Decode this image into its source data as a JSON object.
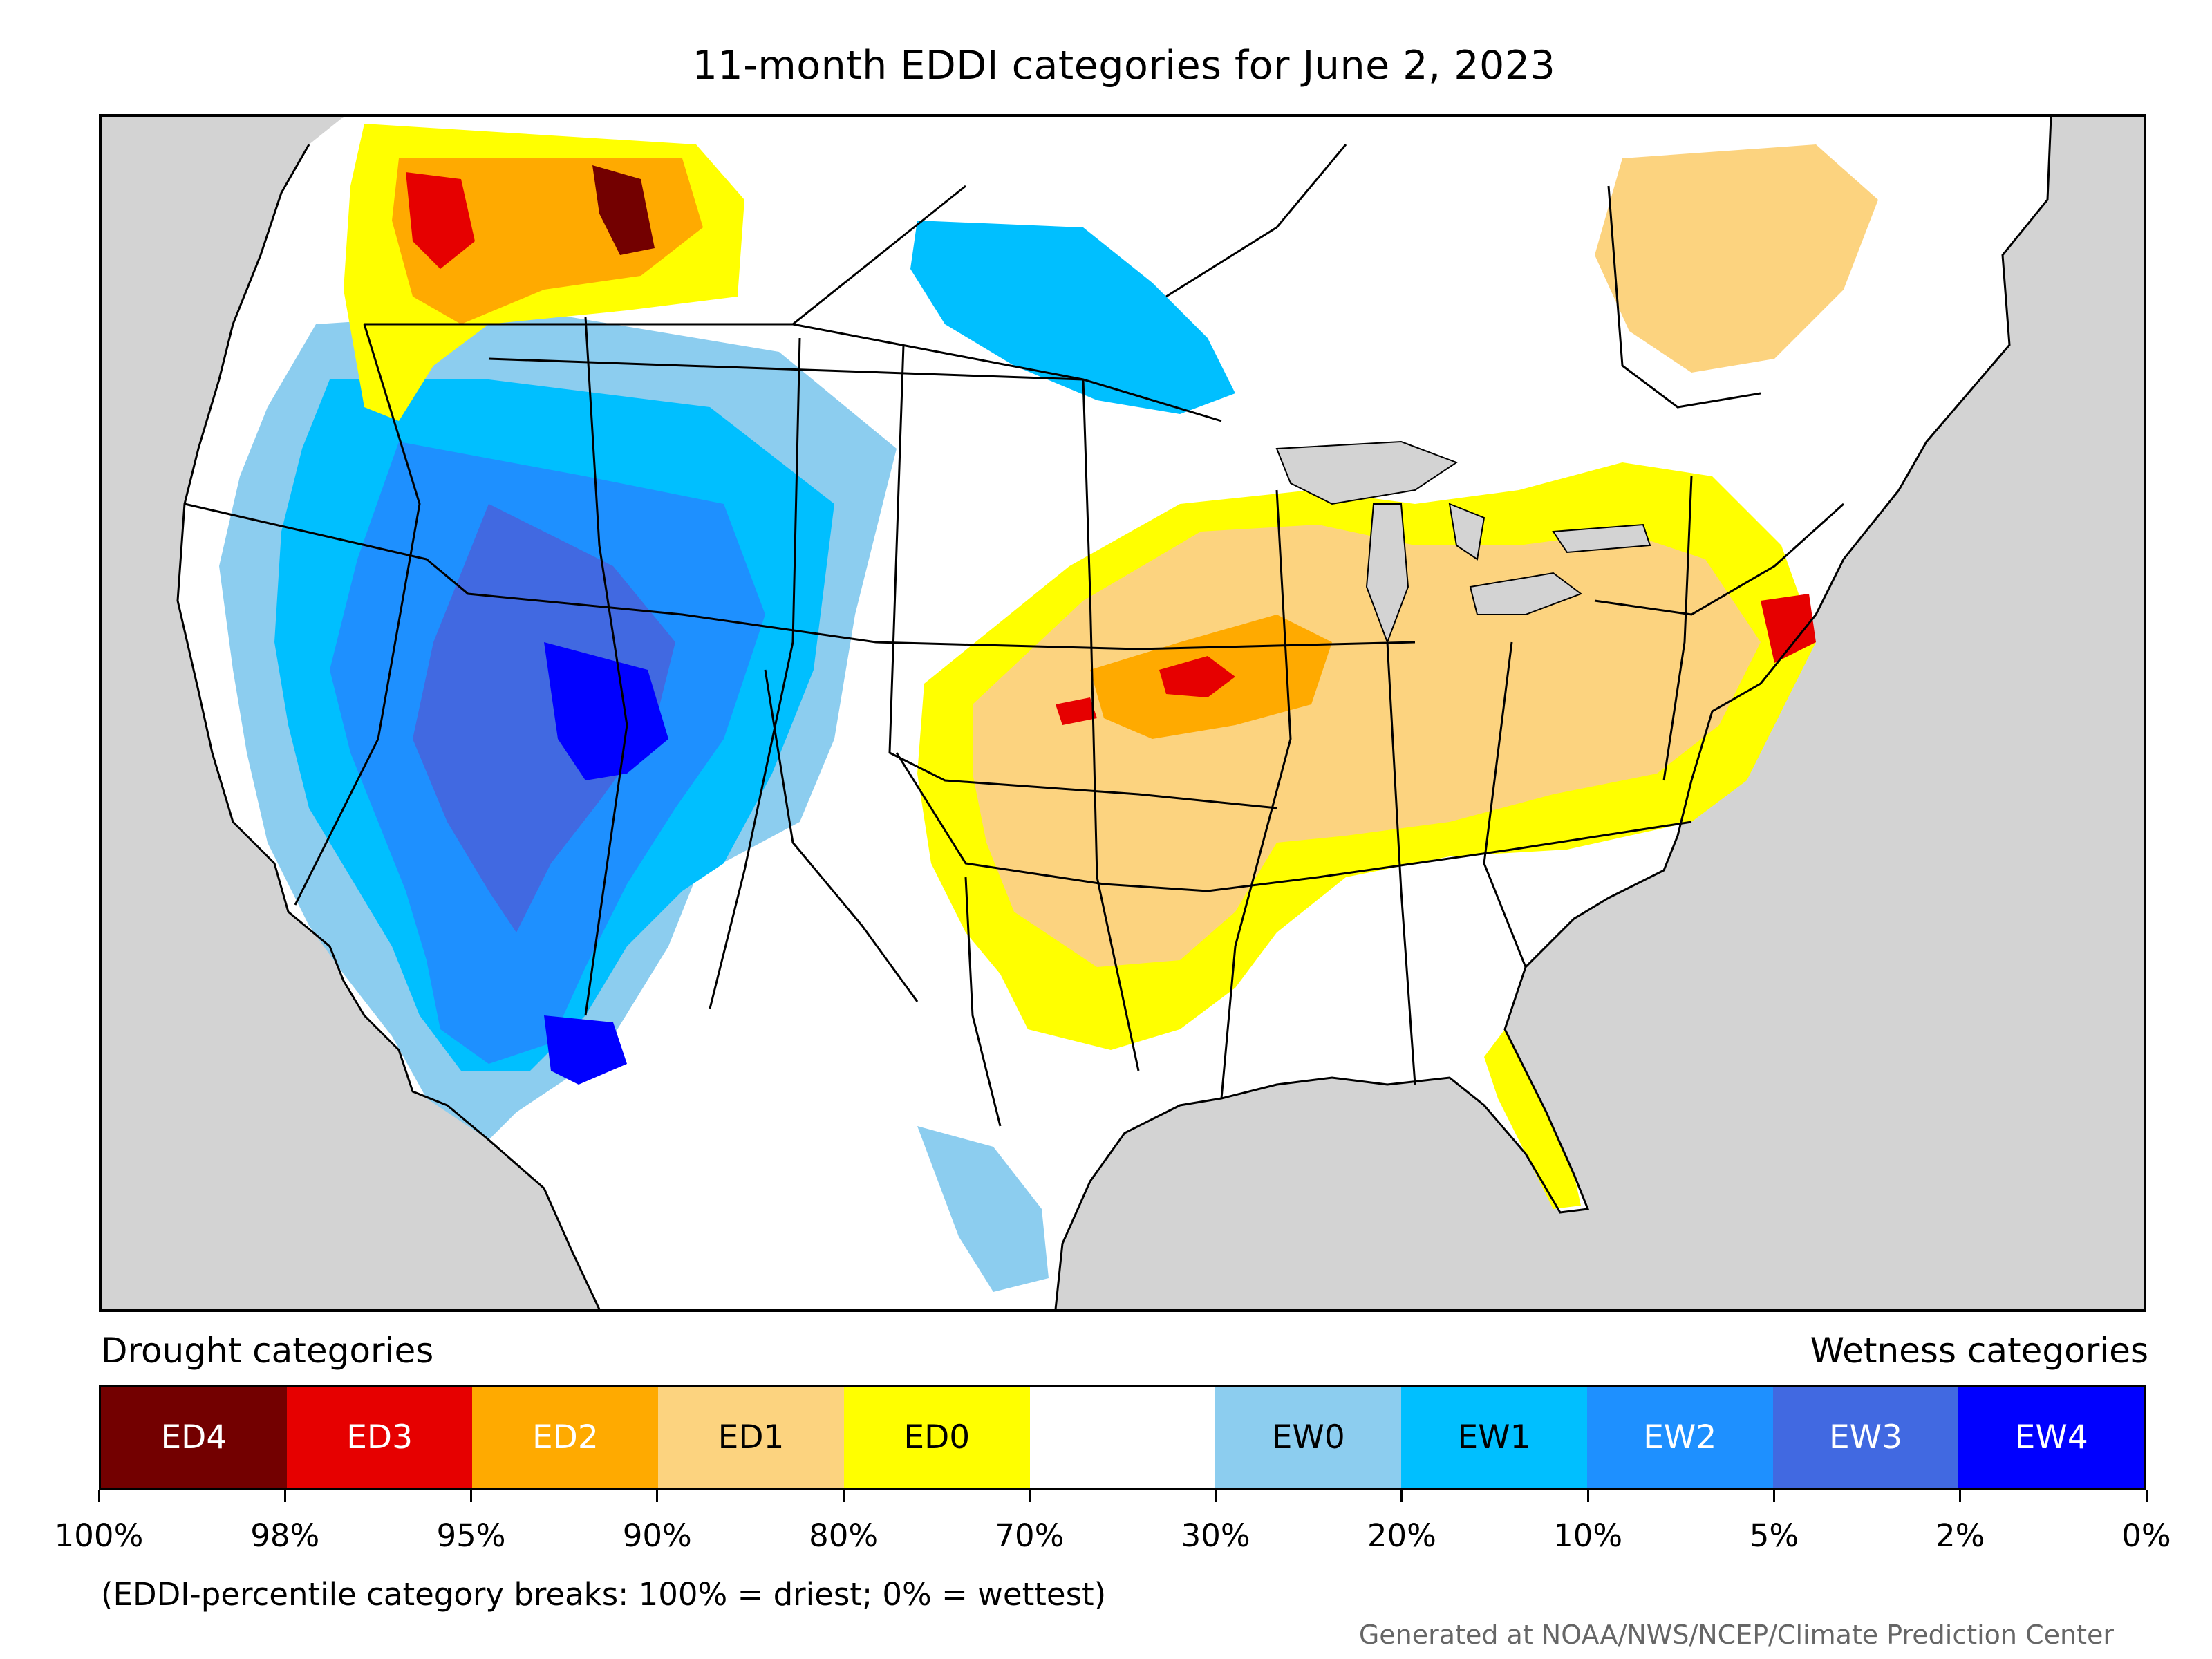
{
  "title": "11-month EDDI categories for June 2, 2023",
  "legend": {
    "drought_heading": "Drought categories",
    "wetness_heading": "Wetness categories",
    "categories": [
      {
        "label": "ED4",
        "color": "#730000",
        "text_color": "#ffffff"
      },
      {
        "label": "ED3",
        "color": "#e60000",
        "text_color": "#ffffff"
      },
      {
        "label": "ED2",
        "color": "#ffaa00",
        "text_color": "#ffffff"
      },
      {
        "label": "ED1",
        "color": "#fcd37f",
        "text_color": "#000000"
      },
      {
        "label": "ED0",
        "color": "#ffff00",
        "text_color": "#000000"
      },
      {
        "label": "",
        "color": "#ffffff",
        "text_color": "#000000"
      },
      {
        "label": "EW0",
        "color": "#8ccdef",
        "text_color": "#000000"
      },
      {
        "label": "EW1",
        "color": "#00bfff",
        "text_color": "#000000"
      },
      {
        "label": "EW2",
        "color": "#1e90ff",
        "text_color": "#ffffff"
      },
      {
        "label": "EW3",
        "color": "#4169e1",
        "text_color": "#ffffff"
      },
      {
        "label": "EW4",
        "color": "#0000ff",
        "text_color": "#ffffff"
      }
    ],
    "breaks": [
      "100%",
      "98%",
      "95%",
      "90%",
      "80%",
      "70%",
      "30%",
      "20%",
      "10%",
      "5%",
      "2%",
      "0%"
    ]
  },
  "footnote": "(EDDI-percentile category breaks: 100% = driest; 0% = wettest)",
  "credit": "Generated at NOAA/NWS/NCEP/Climate Prediction Center",
  "map": {
    "ocean_color": "#d3d3d3",
    "land_color": "#ffffff",
    "border_color": "#000000"
  }
}
